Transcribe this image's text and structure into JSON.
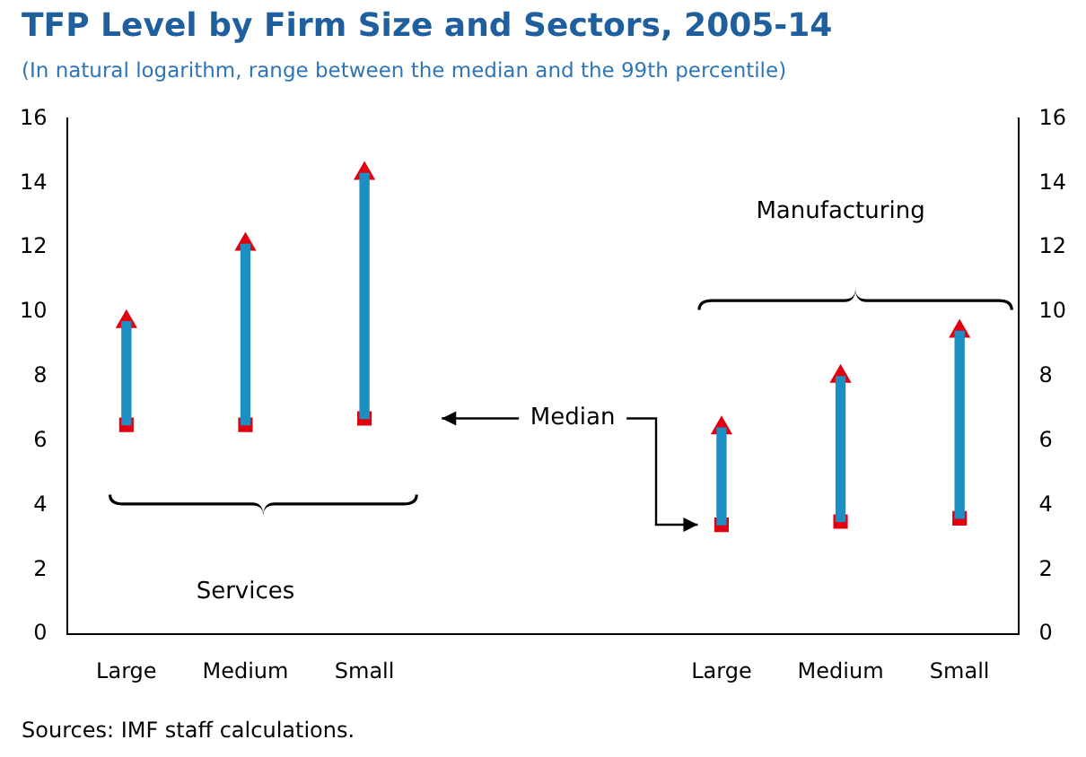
{
  "chart_data": {
    "type": "bar",
    "title": "TFP Level by Firm Size and Sectors, 2005-14",
    "subtitle": "(In natural logarithm, range between the median and the 99th percentile)",
    "categories": [
      "Large",
      "Medium",
      "Small",
      null,
      null,
      "Large",
      "Medium",
      "Small"
    ],
    "series": [
      {
        "type": "bar",
        "color": "#1b8ec2",
        "base": [
          6.5,
          6.5,
          6.7,
          null,
          null,
          3.4,
          3.5,
          3.6
        ],
        "values": [
          3.2,
          5.6,
          7.6,
          null,
          null,
          3.0,
          4.5,
          5.8
        ]
      },
      {
        "type": "scatter",
        "color": "#e3000f",
        "marker": "square",
        "values": [
          6.5,
          6.5,
          6.7,
          null,
          null,
          3.4,
          3.5,
          3.6
        ]
      },
      {
        "type": "scatter",
        "color": "#e3000f",
        "marker": "triangle",
        "values": [
          9.7,
          12.1,
          14.3,
          null,
          null,
          6.4,
          8.0,
          9.4
        ]
      }
    ],
    "ylim": [
      0,
      16
    ],
    "yticks": [
      0,
      2,
      4,
      6,
      8,
      10,
      12,
      14,
      16
    ],
    "y2lim": [
      0,
      16
    ],
    "y2ticks": [
      0,
      2,
      4,
      6,
      8,
      10,
      12,
      14,
      16
    ],
    "grid": false,
    "legend": false,
    "annotations": [
      "Services",
      "Manufacturing",
      "Median",
      "Sources: IMF staff calculations."
    ]
  }
}
